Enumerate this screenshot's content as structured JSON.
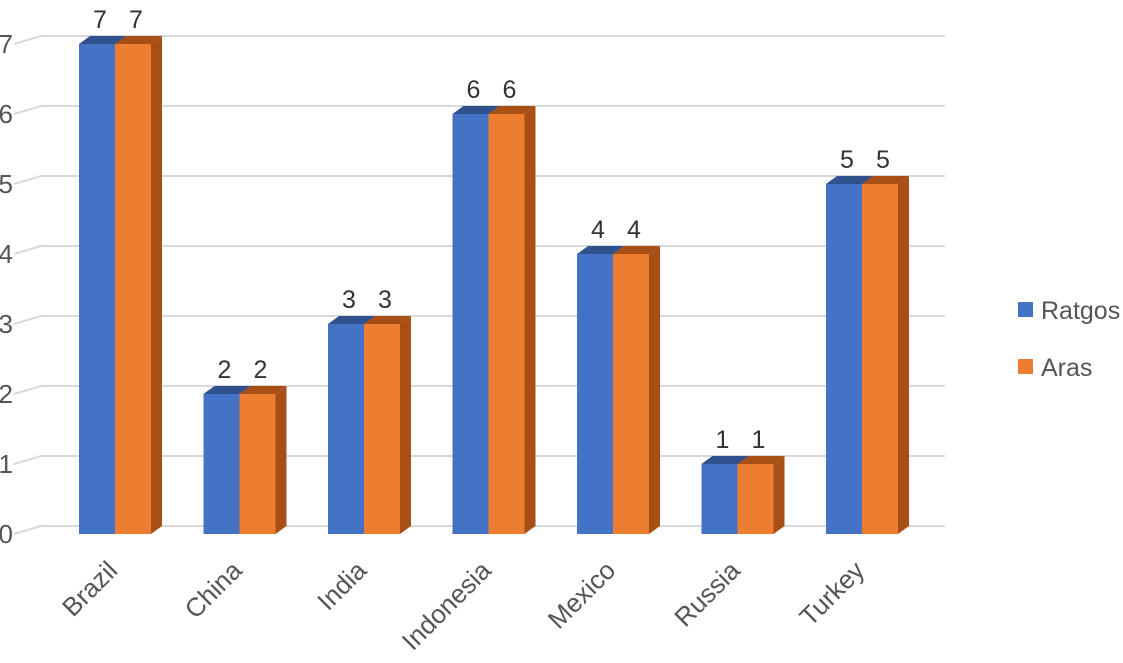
{
  "chart_data": {
    "type": "bar",
    "categories": [
      "Brazil",
      "China",
      "India",
      "Indonesia",
      "Mexico",
      "Russia",
      "Turkey"
    ],
    "series": [
      {
        "name": "Ratgos",
        "values": [
          7,
          2,
          3,
          6,
          4,
          1,
          5
        ],
        "color": "#4472c4",
        "side_color": "#2f528f"
      },
      {
        "name": "Aras",
        "values": [
          7,
          2,
          3,
          6,
          4,
          1,
          5
        ],
        "color": "#ed7d31",
        "side_color": "#a84f16"
      }
    ],
    "ylim": [
      0,
      7
    ],
    "yticks": [
      0,
      1,
      2,
      3,
      4,
      5,
      6,
      7
    ],
    "grid": true,
    "legend_position": "right",
    "data_labels": true,
    "style": "3d-clustered-column"
  }
}
